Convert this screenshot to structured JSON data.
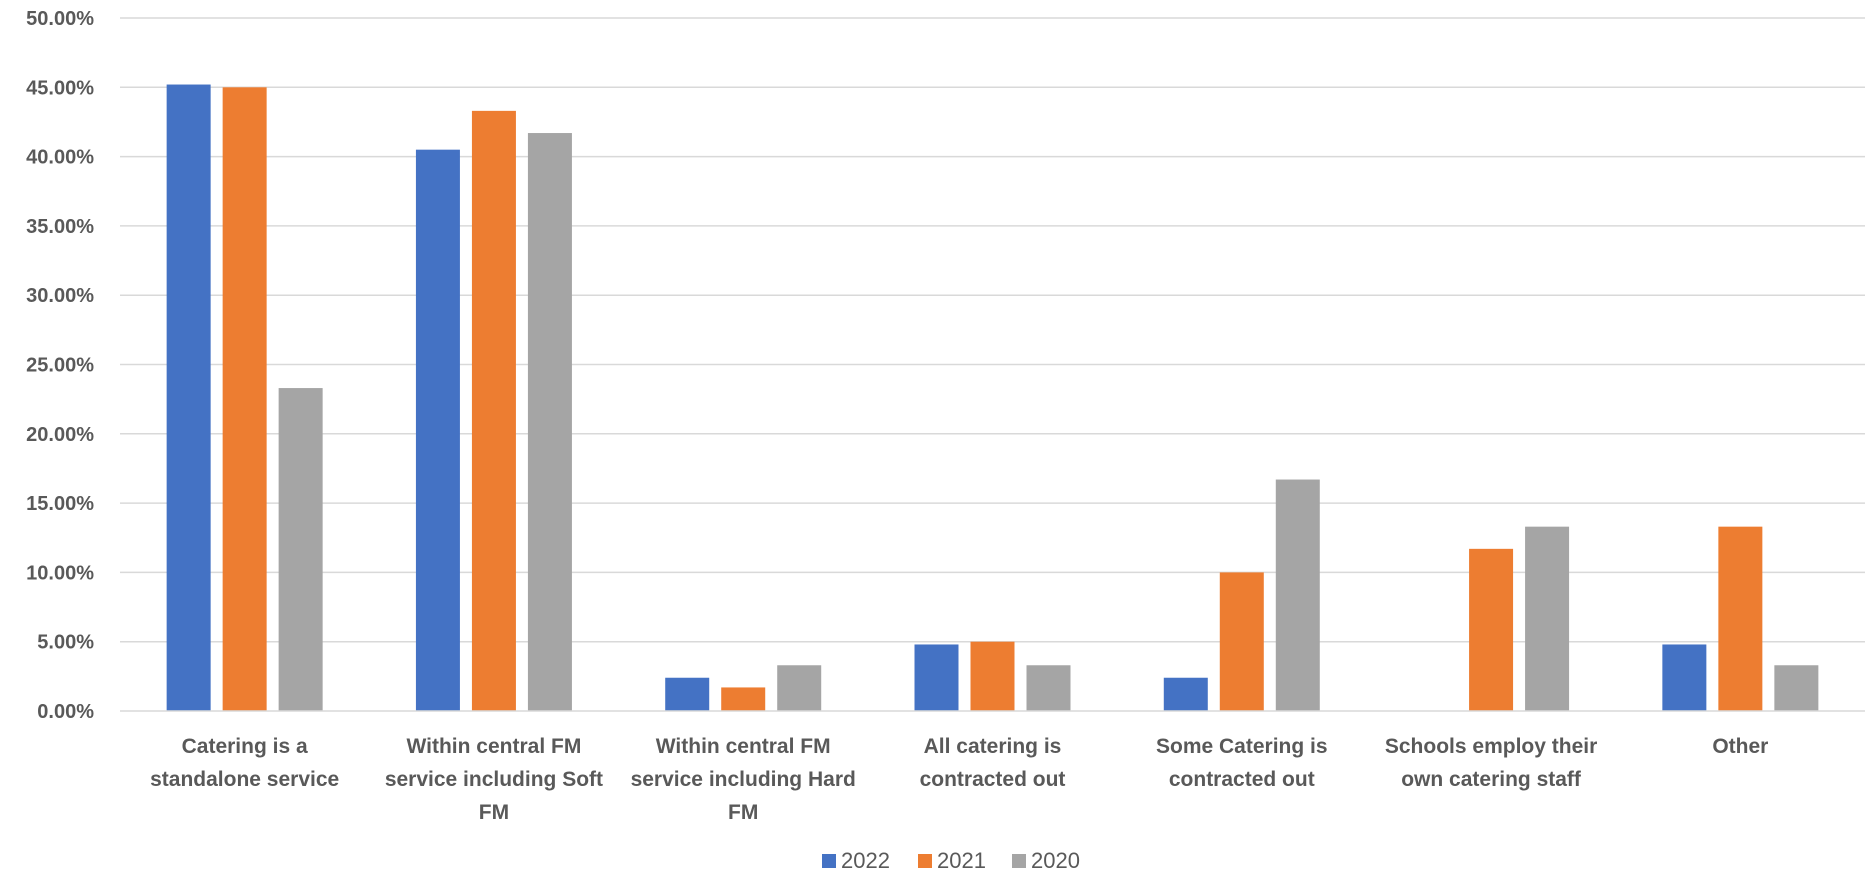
{
  "chart_data": {
    "type": "bar",
    "title": "",
    "xlabel": "",
    "ylabel": "",
    "ylim": [
      0,
      0.5
    ],
    "yticks": [
      "0.00%",
      "5.00%",
      "10.00%",
      "15.00%",
      "20.00%",
      "25.00%",
      "30.00%",
      "35.00%",
      "40.00%",
      "45.00%",
      "50.00%"
    ],
    "grid": true,
    "legend_position": "bottom",
    "categories": [
      [
        "Catering is a",
        "standalone service"
      ],
      [
        "Within central FM",
        "service including Soft",
        "FM"
      ],
      [
        "Within central FM",
        "service including Hard",
        "FM"
      ],
      [
        "All catering is",
        "contracted out"
      ],
      [
        "Some Catering is",
        "contracted out"
      ],
      [
        "Schools employ their",
        "own catering staff"
      ],
      [
        "Other"
      ]
    ],
    "series": [
      {
        "name": "2022",
        "color": "#4472C4",
        "values": [
          0.452,
          0.405,
          0.024,
          0.048,
          0.024,
          0.0,
          0.048
        ]
      },
      {
        "name": "2021",
        "color": "#ED7D31",
        "values": [
          0.45,
          0.433,
          0.017,
          0.05,
          0.1,
          0.117,
          0.133
        ]
      },
      {
        "name": "2020",
        "color": "#A5A5A5",
        "values": [
          0.233,
          0.417,
          0.033,
          0.033,
          0.167,
          0.133,
          0.033
        ]
      }
    ]
  }
}
